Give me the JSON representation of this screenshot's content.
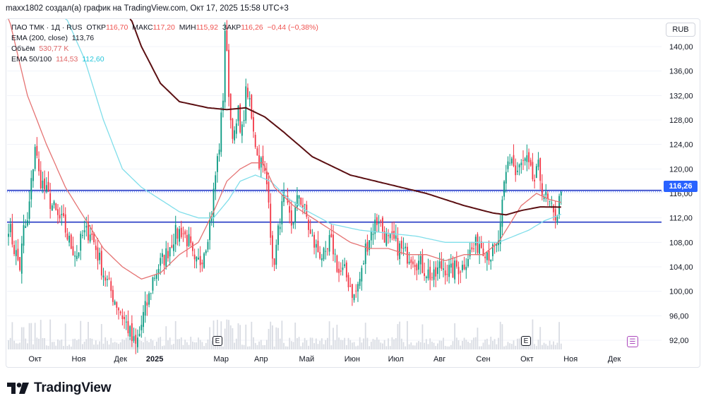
{
  "header": {
    "caption": "maxx1802 создал(а) график на TradingView.com, Окт 17, 2025 15:58 UTC+3"
  },
  "legend": {
    "symbol": "ПАО ТМК · 1Д · RUS",
    "open_label": "ОТКР",
    "open_value": "116,70",
    "high_label": "МАКС",
    "high_value": "117,20",
    "low_label": "МИН",
    "low_value": "115,92",
    "close_label": "ЗАКР",
    "close_value": "116,26",
    "change": "−0,44 (−0,38%)",
    "ema200_label": "EMA (200, close)",
    "ema200_value": "113,76",
    "volume_label": "Объём",
    "volume_value": "530,77 K",
    "ema50_100_label": "EMA 50/100",
    "ema50_value": "114,53",
    "ema100_value": "112,60"
  },
  "currency_button": "RUB",
  "last_price_tag": "116,26",
  "event_markers": [
    "E",
    "E"
  ],
  "brand": {
    "name": "TradingView",
    "logo_icon": "tradingview-logo-icon"
  },
  "colors": {
    "up": "#089981",
    "down": "#f23645",
    "ema200": "#5b0f12",
    "ema50": "#e57373",
    "ema100": "#80deea",
    "hline": "#2337c4",
    "accent": "#2962ff",
    "volume": "#d9dce3"
  },
  "chart_data": {
    "type": "candlestick",
    "y_axis": {
      "ticks": [
        "92,00",
        "96,00",
        "100,00",
        "104,00",
        "108,00",
        "112,00",
        "116,00",
        "120,00",
        "124,00",
        "128,00",
        "132,00",
        "136,00",
        "140,00"
      ],
      "range": [
        90.5,
        144.5
      ]
    },
    "x_axis": {
      "labels": [
        "Окт",
        "Ноя",
        "Дек",
        "2025",
        "Мар",
        "Апр",
        "Май",
        "Июн",
        "Июл",
        "Авг",
        "Сен",
        "Окт",
        "Ноя",
        "Дек"
      ]
    },
    "horizontal_levels": [
      116.5,
      111.3
    ],
    "last_close": 116.26,
    "price_anchors": [
      [
        0,
        111
      ],
      [
        3,
        107
      ],
      [
        6,
        104
      ],
      [
        8,
        110
      ],
      [
        10,
        111
      ],
      [
        14,
        124
      ],
      [
        16,
        119
      ],
      [
        20,
        116
      ],
      [
        23,
        114
      ],
      [
        26,
        112
      ],
      [
        29,
        111
      ],
      [
        32,
        108
      ],
      [
        36,
        106
      ],
      [
        39,
        109
      ],
      [
        43,
        110
      ],
      [
        46,
        107
      ],
      [
        50,
        103
      ],
      [
        54,
        100
      ],
      [
        57,
        98
      ],
      [
        60,
        96
      ],
      [
        63,
        94
      ],
      [
        65,
        92
      ],
      [
        67,
        91
      ],
      [
        69,
        93
      ],
      [
        71,
        96
      ],
      [
        74,
        99
      ],
      [
        76,
        102
      ],
      [
        79,
        104
      ],
      [
        83,
        106
      ],
      [
        87,
        109
      ],
      [
        91,
        110
      ],
      [
        95,
        108
      ],
      [
        98,
        104
      ],
      [
        101,
        105
      ],
      [
        104,
        108
      ],
      [
        107,
        113
      ],
      [
        109,
        119
      ],
      [
        111,
        124
      ],
      [
        113,
        132
      ],
      [
        114,
        143
      ],
      [
        115,
        138
      ],
      [
        117,
        128
      ],
      [
        119,
        125
      ],
      [
        121,
        129
      ],
      [
        123,
        126
      ],
      [
        125,
        132
      ],
      [
        127,
        131
      ],
      [
        129,
        127
      ],
      [
        131,
        122
      ],
      [
        133,
        121
      ],
      [
        135,
        119
      ],
      [
        137,
        116
      ],
      [
        139,
        104
      ],
      [
        141,
        107
      ],
      [
        143,
        112
      ],
      [
        145,
        115
      ],
      [
        147,
        113
      ],
      [
        149,
        111
      ],
      [
        151,
        113
      ],
      [
        153,
        116
      ],
      [
        155,
        114
      ],
      [
        157,
        112
      ],
      [
        159,
        109
      ],
      [
        162,
        107
      ],
      [
        165,
        106
      ],
      [
        167,
        105
      ],
      [
        169,
        108
      ],
      [
        171,
        107
      ],
      [
        174,
        103
      ],
      [
        177,
        103
      ],
      [
        180,
        101
      ],
      [
        182,
        99
      ],
      [
        184,
        101
      ],
      [
        186,
        103
      ],
      [
        188,
        107
      ],
      [
        190,
        109
      ],
      [
        193,
        111
      ],
      [
        195,
        112
      ],
      [
        197,
        110
      ],
      [
        200,
        108
      ],
      [
        203,
        108
      ],
      [
        206,
        107
      ],
      [
        209,
        106
      ],
      [
        212,
        106
      ],
      [
        215,
        105
      ],
      [
        218,
        104
      ],
      [
        221,
        103
      ],
      [
        224,
        102
      ],
      [
        227,
        104
      ],
      [
        230,
        104
      ],
      [
        233,
        103
      ],
      [
        236,
        104
      ],
      [
        239,
        104
      ],
      [
        242,
        106
      ],
      [
        245,
        107
      ],
      [
        248,
        108
      ],
      [
        251,
        107
      ],
      [
        254,
        106
      ],
      [
        257,
        107
      ],
      [
        259,
        110
      ],
      [
        261,
        117
      ],
      [
        263,
        121
      ],
      [
        265,
        122
      ],
      [
        267,
        119
      ],
      [
        269,
        120
      ],
      [
        271,
        121
      ],
      [
        273,
        121
      ],
      [
        275,
        119
      ],
      [
        277,
        118
      ],
      [
        279,
        120
      ],
      [
        281,
        117
      ],
      [
        283,
        115
      ],
      [
        285,
        114
      ],
      [
        287,
        112
      ],
      [
        289,
        113
      ],
      [
        291,
        116.26
      ]
    ],
    "ema200_anchors": [
      [
        64,
        145
      ],
      [
        70,
        140
      ],
      [
        80,
        134
      ],
      [
        90,
        131
      ],
      [
        105,
        130
      ],
      [
        115,
        129.7
      ],
      [
        125,
        130
      ],
      [
        135,
        128.5
      ],
      [
        145,
        126
      ],
      [
        160,
        122
      ],
      [
        180,
        119
      ],
      [
        200,
        117.5
      ],
      [
        220,
        116
      ],
      [
        240,
        114
      ],
      [
        255,
        112.8
      ],
      [
        262,
        112.5
      ],
      [
        270,
        113.2
      ],
      [
        280,
        113.8
      ],
      [
        291,
        113.76
      ]
    ],
    "ema50_anchors": [
      [
        0,
        145
      ],
      [
        10,
        132
      ],
      [
        20,
        124
      ],
      [
        30,
        117
      ],
      [
        40,
        112
      ],
      [
        50,
        107
      ],
      [
        60,
        104
      ],
      [
        70,
        102
      ],
      [
        80,
        103
      ],
      [
        90,
        106
      ],
      [
        100,
        108
      ],
      [
        108,
        113
      ],
      [
        115,
        118
      ],
      [
        122,
        120
      ],
      [
        128,
        121
      ],
      [
        134,
        121
      ],
      [
        140,
        117
      ],
      [
        150,
        114
      ],
      [
        160,
        112
      ],
      [
        170,
        110
      ],
      [
        180,
        108
      ],
      [
        190,
        107
      ],
      [
        200,
        107
      ],
      [
        210,
        106
      ],
      [
        220,
        106
      ],
      [
        230,
        105
      ],
      [
        240,
        106
      ],
      [
        250,
        106
      ],
      [
        258,
        108
      ],
      [
        264,
        111
      ],
      [
        270,
        114
      ],
      [
        278,
        116
      ],
      [
        285,
        115
      ],
      [
        291,
        114.53
      ]
    ],
    "ema100_anchors": [
      [
        30,
        145
      ],
      [
        40,
        138
      ],
      [
        50,
        128
      ],
      [
        60,
        120
      ],
      [
        70,
        117
      ],
      [
        80,
        115
      ],
      [
        90,
        113
      ],
      [
        100,
        112
      ],
      [
        108,
        112
      ],
      [
        116,
        115
      ],
      [
        122,
        118
      ],
      [
        130,
        119
      ],
      [
        138,
        118
      ],
      [
        148,
        115
      ],
      [
        158,
        113
      ],
      [
        170,
        111
      ],
      [
        185,
        110
      ],
      [
        200,
        109.5
      ],
      [
        215,
        109
      ],
      [
        230,
        108
      ],
      [
        245,
        108
      ],
      [
        258,
        108
      ],
      [
        266,
        109
      ],
      [
        274,
        110
      ],
      [
        282,
        111.5
      ],
      [
        291,
        112.6
      ]
    ]
  }
}
